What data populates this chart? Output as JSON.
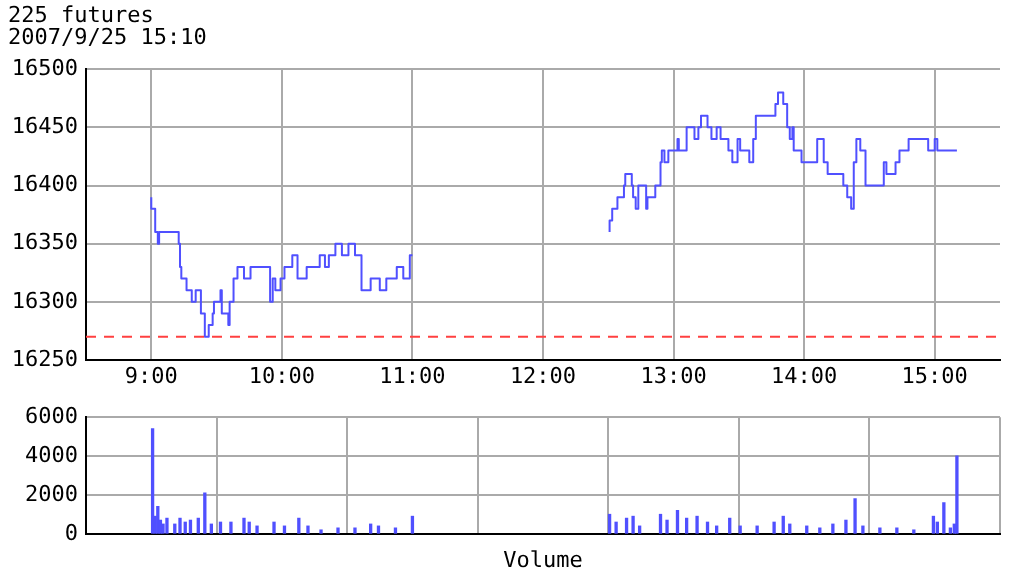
{
  "chart_data": [
    {
      "type": "step",
      "title": "225 futures",
      "subtitle": "2007/9/25 15:10",
      "x": [
        9.0,
        9.03,
        9.05,
        9.06,
        9.21,
        9.22,
        9.23,
        9.27,
        9.31,
        9.34,
        9.38,
        9.41,
        9.44,
        9.47,
        9.48,
        9.53,
        9.54,
        9.59,
        9.6,
        9.63,
        9.66,
        9.71,
        9.76,
        9.91,
        9.93,
        9.95,
        9.99,
        10.02,
        10.08,
        10.12,
        10.19,
        10.29,
        10.33,
        10.36,
        10.41,
        10.46,
        10.51,
        10.56,
        10.61,
        10.68,
        10.75,
        10.8,
        10.88,
        10.93,
        10.98,
        11.0,
        12.0,
        12.51,
        12.53,
        12.57,
        12.62,
        12.63,
        12.68,
        12.69,
        12.71,
        12.73,
        12.79,
        12.8,
        12.86,
        12.9,
        12.91,
        12.93,
        12.96,
        13.03,
        13.04,
        13.1,
        13.16,
        13.19,
        13.21,
        13.26,
        13.29,
        13.33,
        13.36,
        13.42,
        13.45,
        13.49,
        13.51,
        13.58,
        13.61,
        13.63,
        13.78,
        13.8,
        13.84,
        13.87,
        13.89,
        13.91,
        13.92,
        13.98,
        14.1,
        14.15,
        14.18,
        14.3,
        14.33,
        14.36,
        14.38,
        14.4,
        14.43,
        14.47,
        14.61,
        14.63,
        14.7,
        14.73,
        14.8,
        14.95,
        15.0,
        15.02,
        15.11,
        15.17
      ],
      "values": [
        16390,
        16380,
        16360,
        16350,
        16360,
        16350,
        16330,
        16320,
        16310,
        16300,
        16310,
        16290,
        16270,
        16280,
        16290,
        16300,
        16310,
        16290,
        16280,
        16300,
        16320,
        16330,
        16320,
        16330,
        16300,
        16320,
        16310,
        16320,
        16330,
        16340,
        16320,
        16330,
        16340,
        16330,
        16340,
        16350,
        16340,
        16350,
        16340,
        16310,
        16320,
        16310,
        16320,
        16330,
        16320,
        16340,
        null,
        16360,
        16370,
        16380,
        16390,
        16400,
        16410,
        16400,
        16390,
        16380,
        16400,
        16380,
        16390,
        16400,
        16420,
        16430,
        16420,
        16430,
        16440,
        16430,
        16450,
        16440,
        16450,
        16460,
        16450,
        16440,
        16450,
        16440,
        16430,
        16420,
        16440,
        16430,
        16420,
        16440,
        16460,
        16470,
        16480,
        16470,
        16450,
        16440,
        16450,
        16430,
        16420,
        16440,
        16420,
        16410,
        16400,
        16390,
        16380,
        16420,
        16440,
        16430,
        16400,
        16420,
        16410,
        16420,
        16430,
        16440,
        16430,
        16440,
        16430,
        16430
      ],
      "color": "#5050ff",
      "xlim": [
        8.5,
        15.5
      ],
      "xticks": [
        {
          "value": 9,
          "label": "9:00"
        },
        {
          "value": 10,
          "label": "10:00"
        },
        {
          "value": 11,
          "label": "11:00"
        },
        {
          "value": 12,
          "label": "12:00"
        },
        {
          "value": 13,
          "label": "13:00"
        },
        {
          "value": 14,
          "label": "14:00"
        },
        {
          "value": 15,
          "label": "15:00"
        }
      ],
      "ylim": [
        16250,
        16500
      ],
      "yticks": [
        16250,
        16300,
        16350,
        16400,
        16450,
        16500
      ],
      "ref_lines": [
        {
          "axis": "y",
          "value": 16270,
          "color": "#ff4040",
          "line_style": "dashed"
        }
      ],
      "grid": true,
      "legend": false
    },
    {
      "type": "bar",
      "xlabel": "Volume",
      "x": [
        9.01,
        9.03,
        9.05,
        9.07,
        9.09,
        9.12,
        9.18,
        9.22,
        9.26,
        9.3,
        9.36,
        9.41,
        9.46,
        9.53,
        9.61,
        9.71,
        9.75,
        9.81,
        9.94,
        10.02,
        10.13,
        10.2,
        10.3,
        10.43,
        10.56,
        10.68,
        10.74,
        10.87,
        11.0,
        12.51,
        12.56,
        12.64,
        12.69,
        12.74,
        12.9,
        12.95,
        13.03,
        13.1,
        13.18,
        13.26,
        13.33,
        13.43,
        13.51,
        13.64,
        13.77,
        13.84,
        13.89,
        14.02,
        14.12,
        14.22,
        14.32,
        14.39,
        14.45,
        14.58,
        14.71,
        14.84,
        14.99,
        15.02,
        15.07,
        15.12,
        15.15,
        15.17
      ],
      "values": [
        5400,
        900,
        1400,
        700,
        500,
        800,
        500,
        800,
        600,
        700,
        800,
        2100,
        500,
        600,
        600,
        800,
        600,
        400,
        600,
        400,
        800,
        400,
        200,
        300,
        300,
        500,
        400,
        300,
        900,
        1000,
        600,
        800,
        900,
        400,
        1000,
        700,
        1200,
        800,
        900,
        600,
        400,
        800,
        400,
        400,
        600,
        900,
        500,
        400,
        300,
        500,
        700,
        1800,
        400,
        300,
        300,
        200,
        900,
        600,
        1600,
        300,
        500,
        4000
      ],
      "color": "#5050ff",
      "xlim": [
        8.5,
        15.5
      ],
      "xticks": [
        9,
        10,
        11,
        12,
        13,
        14,
        15
      ],
      "ylim": [
        0,
        6000
      ],
      "yticks": [
        0,
        2000,
        4000,
        6000
      ],
      "tick_labels": "y",
      "grid": true,
      "legend": false
    }
  ]
}
